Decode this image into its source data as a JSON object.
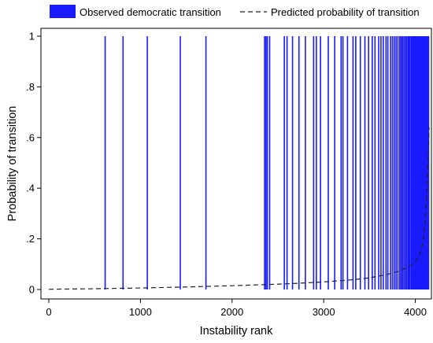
{
  "chart_data": {
    "type": "line",
    "title": "",
    "xlabel": "Instability rank",
    "ylabel": "Probability of transition",
    "xlim": [
      0,
      4150
    ],
    "ylim": [
      0,
      1
    ],
    "x_ticks": [
      0,
      1000,
      2000,
      3000,
      4000
    ],
    "x_tick_labels": [
      "0",
      "1000",
      "2000",
      "3000",
      "4000"
    ],
    "y_ticks": [
      0,
      0.2,
      0.4,
      0.6,
      0.8,
      1
    ],
    "y_tick_labels": [
      "0",
      ".2",
      ".4",
      ".6",
      ".8",
      "1"
    ],
    "grid": false,
    "legend_position": "top",
    "series": [
      {
        "name": "Observed democratic transition",
        "kind": "spike",
        "color": "#1a1aff",
        "x": [
          615,
          810,
          1075,
          1435,
          1715,
          2355,
          2370,
          2385,
          2410,
          2570,
          2600,
          2660,
          2730,
          2800,
          2890,
          2920,
          2965,
          3050,
          3120,
          3190,
          3210,
          3260,
          3320,
          3350,
          3400,
          3450,
          3490,
          3530,
          3560,
          3600,
          3625,
          3650,
          3680,
          3700,
          3730,
          3750,
          3770,
          3790,
          3810,
          3830,
          3845,
          3860,
          3875,
          3890,
          3905,
          3920,
          3930,
          3940,
          3955,
          3965,
          3975,
          3985,
          3995,
          4005,
          4015,
          4025,
          4035,
          4045,
          4055,
          4065,
          4075,
          4085,
          4095,
          4105,
          4115,
          4125,
          4135,
          4145
        ],
        "values": [
          1,
          1,
          1,
          1,
          1,
          1,
          1,
          1,
          1,
          1,
          1,
          1,
          1,
          1,
          1,
          1,
          1,
          1,
          1,
          1,
          1,
          1,
          1,
          1,
          1,
          1,
          1,
          1,
          1,
          1,
          1,
          1,
          1,
          1,
          1,
          1,
          1,
          1,
          1,
          1,
          1,
          1,
          1,
          1,
          1,
          1,
          1,
          1,
          1,
          1,
          1,
          1,
          1,
          1,
          1,
          1,
          1,
          1,
          1,
          1,
          1,
          1,
          1,
          1,
          1,
          1,
          1,
          1
        ]
      },
      {
        "name": "Predicted probability of transition",
        "kind": "dashed-line",
        "color": "#222222",
        "x": [
          0,
          500,
          1000,
          1500,
          2000,
          2500,
          2800,
          3000,
          3300,
          3500,
          3700,
          3800,
          3900,
          3950,
          4000,
          4050,
          4080,
          4100,
          4120,
          4140,
          4150
        ],
        "values": [
          0.001,
          0.003,
          0.006,
          0.01,
          0.015,
          0.021,
          0.026,
          0.03,
          0.038,
          0.046,
          0.06,
          0.07,
          0.085,
          0.095,
          0.11,
          0.14,
          0.18,
          0.24,
          0.34,
          0.5,
          0.64
        ]
      }
    ]
  }
}
